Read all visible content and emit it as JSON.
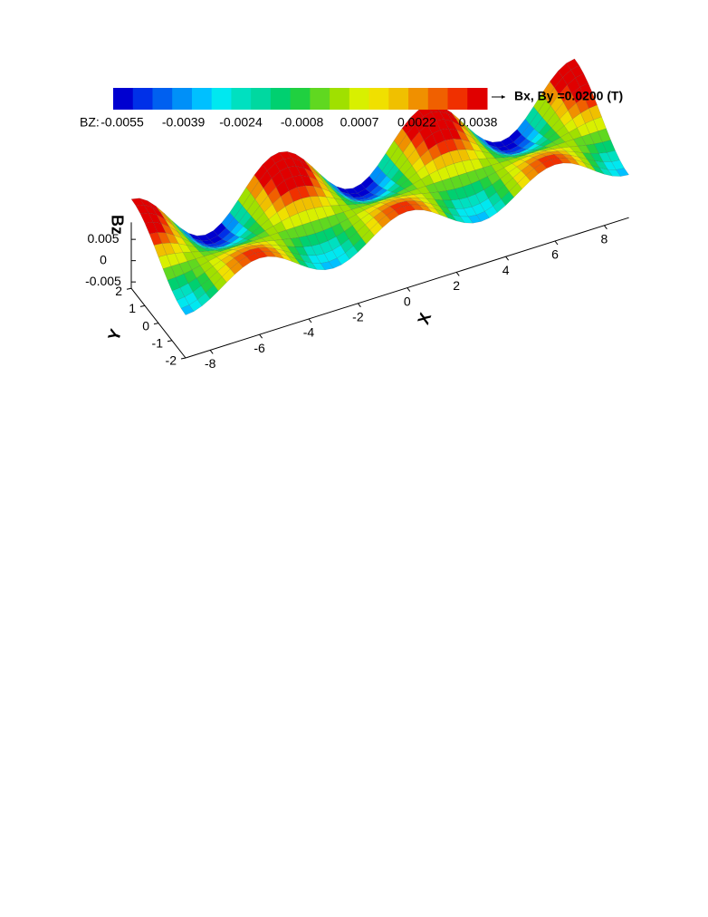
{
  "chart_data": {
    "type": "surface",
    "colorbar": {
      "label": "BZ:",
      "colors": [
        "#0000d0",
        "#0030e8",
        "#0060f0",
        "#0090f8",
        "#00c0ff",
        "#00e8f0",
        "#00e0c0",
        "#00d8a0",
        "#00d070",
        "#20d040",
        "#60d820",
        "#a0e000",
        "#d8f000",
        "#f0e000",
        "#f0c000",
        "#f09000",
        "#f06000",
        "#f03000",
        "#e00000"
      ],
      "ticks": [
        -0.0055,
        -0.0039,
        -0.0024,
        -0.0008,
        0.0007,
        0.0022,
        0.0038
      ]
    },
    "vector_label": "Bx, By =0.0200 (T)",
    "xlabel": "X",
    "ylabel": "Y",
    "zlabel": "Bz",
    "xlim": [
      -9,
      9
    ],
    "ylim": [
      -2,
      2
    ],
    "zlim": [
      -0.0065,
      0.009
    ],
    "xticks": [
      -8,
      -6,
      -4,
      -2,
      0,
      2,
      4,
      6,
      8
    ],
    "yticks": [
      -2,
      -1,
      0,
      1,
      2
    ],
    "zticks": [
      -0.005,
      0,
      0.005
    ]
  }
}
